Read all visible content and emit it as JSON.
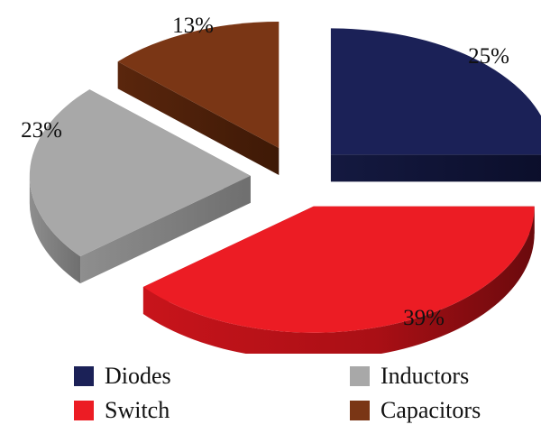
{
  "chart_data": {
    "type": "pie",
    "title": "",
    "slices": [
      {
        "name": "Diodes",
        "value": 25,
        "label": "25%",
        "color": "#1b2157"
      },
      {
        "name": "Switch",
        "value": 39,
        "label": "39%",
        "color": "#ec1c24"
      },
      {
        "name": "Inductors",
        "value": 23,
        "label": "23%",
        "color": "#a8a8a8"
      },
      {
        "name": "Capacitors",
        "value": 13,
        "label": "13%",
        "color": "#7a3615"
      }
    ],
    "exploded": true,
    "style": "3d",
    "legend_position": "bottom"
  },
  "legend": {
    "items": [
      {
        "label": "Diodes",
        "color": "#1b2157"
      },
      {
        "label": "Inductors",
        "color": "#a8a8a8"
      },
      {
        "label": "Switch",
        "color": "#ec1c24"
      },
      {
        "label": "Capacitors",
        "color": "#7a3615"
      }
    ]
  }
}
